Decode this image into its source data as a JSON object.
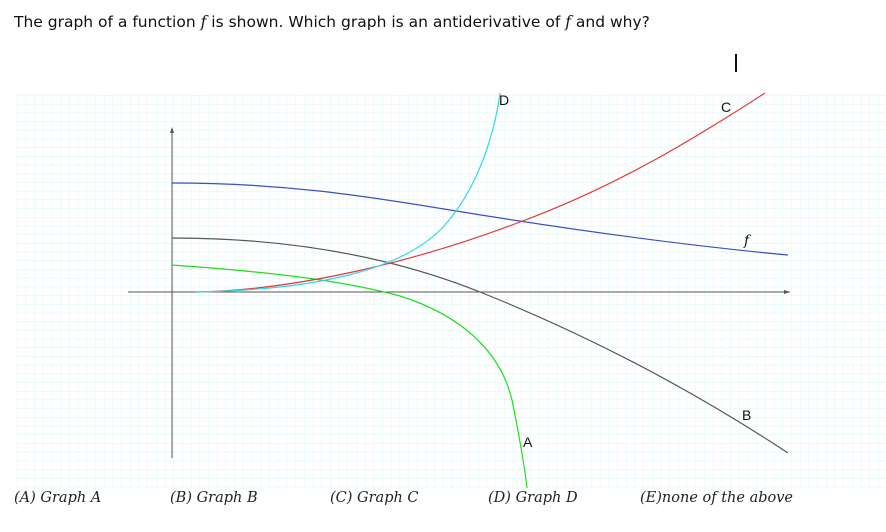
{
  "question": {
    "before": "The graph of a function ",
    "f1": "f",
    "middle": " is shown. Which graph is an antiderivative of ",
    "f2": "f",
    "after": " and why?"
  },
  "graph": {
    "curve_labels": {
      "f": "f",
      "A": "A",
      "B": "B",
      "C": "C",
      "D": "D"
    },
    "colors": {
      "f": "#3a4fc4",
      "A": "#22dd22",
      "B": "#555555",
      "C": "#e03a3a",
      "D": "#33d8e6",
      "grid": "#d8f4f6"
    }
  },
  "choices": [
    {
      "letter": "(A)",
      "text": "Graph A"
    },
    {
      "letter": "(B)",
      "text": "Graph B"
    },
    {
      "letter": "(C)",
      "text": "Graph C"
    },
    {
      "letter": "(D)",
      "text": "Graph D"
    },
    {
      "letter": "(E)",
      "text": "none of the above"
    }
  ]
}
